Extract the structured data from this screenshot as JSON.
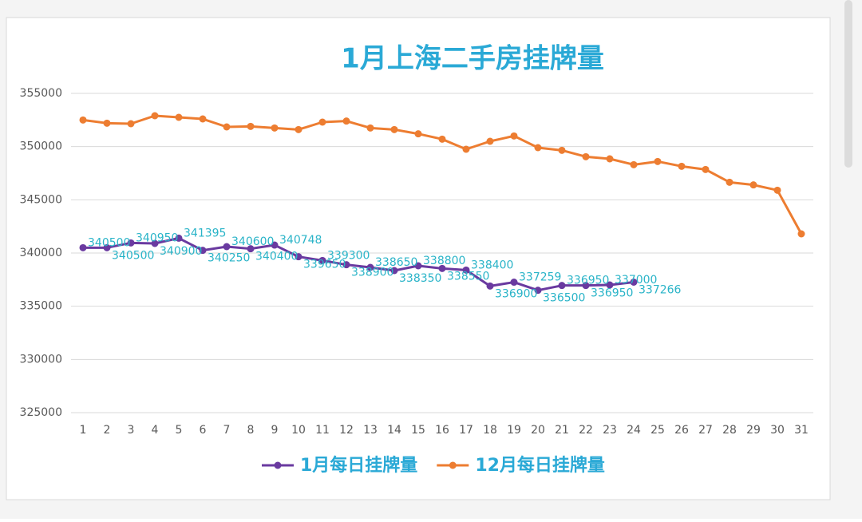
{
  "chart_data": {
    "type": "line",
    "title": "1月上海二手房挂牌量",
    "categories": [
      "1",
      "2",
      "3",
      "4",
      "5",
      "6",
      "7",
      "8",
      "9",
      "10",
      "11",
      "12",
      "13",
      "14",
      "15",
      "16",
      "17",
      "18",
      "19",
      "20",
      "21",
      "22",
      "23",
      "24",
      "25",
      "26",
      "27",
      "28",
      "29",
      "30",
      "31"
    ],
    "series": [
      {
        "name": "1月每日挂牌量",
        "color": "#6a3aa0",
        "data_labels": true,
        "values": [
          340500,
          340500,
          340950,
          340900,
          341395,
          340250,
          340600,
          340400,
          340748,
          339650,
          339300,
          338900,
          338650,
          338350,
          338800,
          338550,
          338400,
          336900,
          337259,
          336500,
          336950,
          336950,
          337000,
          337266,
          null,
          null,
          null,
          null,
          null,
          null,
          null
        ]
      },
      {
        "name": "12月每日挂牌量",
        "color": "#ed7d31",
        "data_labels": false,
        "values": [
          352500,
          352200,
          352150,
          352900,
          352750,
          352600,
          351850,
          351900,
          351750,
          351600,
          352300,
          352400,
          351750,
          351600,
          351200,
          350700,
          349750,
          350500,
          351000,
          349900,
          349650,
          349050,
          348850,
          348300,
          348600,
          348150,
          347850,
          346650,
          346400,
          345900,
          341800
        ]
      }
    ],
    "ylim": [
      325000,
      355000
    ],
    "yticks": [
      325000,
      330000,
      335000,
      340000,
      345000,
      350000,
      355000
    ],
    "grid": true,
    "legend": "bottom",
    "label_color": "#2ab4c8"
  }
}
